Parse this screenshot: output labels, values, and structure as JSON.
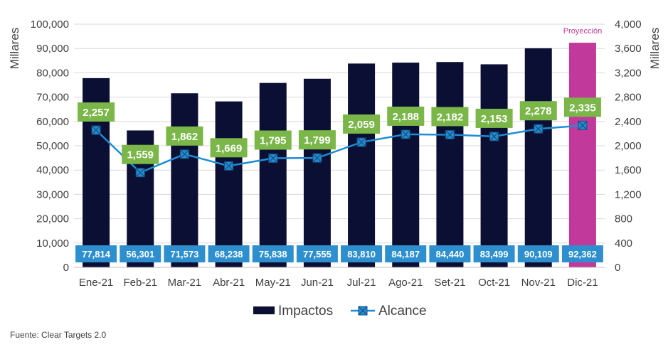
{
  "chart_data": {
    "type": "bar",
    "categories": [
      "Ene-21",
      "Feb-21",
      "Mar-21",
      "Abr-21",
      "May-21",
      "Jun-21",
      "Jul-21",
      "Ago-21",
      "Set-21",
      "Oct-21",
      "Nov-21",
      "Dic-21"
    ],
    "series": [
      {
        "name": "Impactos",
        "type": "bar",
        "axis": "left",
        "values": [
          77814,
          56301,
          71573,
          68238,
          75838,
          77555,
          83810,
          84187,
          84440,
          83499,
          90109,
          92362
        ],
        "labels": [
          "77,814",
          "56,301",
          "71,573",
          "68,238",
          "75,838",
          "77,555",
          "83,810",
          "84,187",
          "84,440",
          "83,499",
          "90,109",
          "92,362"
        ],
        "color": "#0a0f33",
        "highlight_color": "#c0399b",
        "highlight_index": 11
      },
      {
        "name": "Alcance",
        "type": "line",
        "axis": "right",
        "values": [
          2257,
          1559,
          1862,
          1669,
          1795,
          1799,
          2059,
          2188,
          2182,
          2153,
          2278,
          2335
        ],
        "labels": [
          "2,257",
          "1,559",
          "1,862",
          "1,669",
          "1,795",
          "1,799",
          "2,059",
          "2,188",
          "2,182",
          "2,153",
          "2,278",
          "2,335"
        ],
        "color": "#1f8dd6",
        "label_bg": "#7ab648"
      }
    ],
    "ylabel": "Millares",
    "y2label": "Millares",
    "ylim": [
      0,
      100000
    ],
    "y2lim": [
      0,
      4000
    ],
    "yticks": [
      "0",
      "10,000",
      "20,000",
      "30,000",
      "40,000",
      "50,000",
      "60,000",
      "70,000",
      "80,000",
      "90,000",
      "100,000"
    ],
    "y2ticks": [
      "0",
      "400",
      "800",
      "1,200",
      "1,600",
      "2,000",
      "2,400",
      "2,800",
      "3,200",
      "3,600",
      "4,000"
    ],
    "annotation": "Proyección",
    "bar_label_bg": "#2e8fce",
    "grid": true,
    "legend": "bottom-center"
  },
  "source": "Fuente: Clear Targets 2.0"
}
